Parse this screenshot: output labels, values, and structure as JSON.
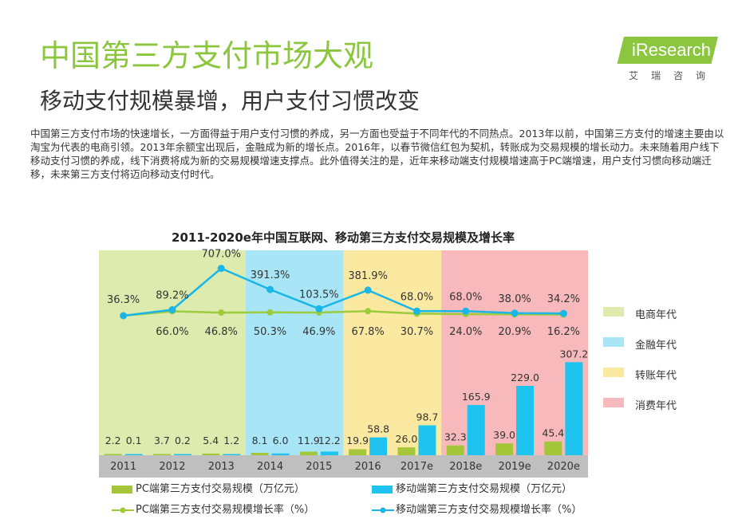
{
  "header": {
    "title": "中国第三方支付市场大观",
    "subtitle": "移动支付规模暴增，用户支付习惯改变",
    "intro": "中国第三方支付市场的快速增长，一方面得益于用户支付习惯的养成，另一方面也受益于不同年代的不同热点。2013年以前，中国第三方支付的增速主要由以淘宝为代表的电商引领。2013年余额宝出现后，金融成为新的增长点。2016年，以春节微信红包为契机，转账成为交易规模的增长动力。未来随着用户线下移动支付习惯的养成，线下消费将成为新的交易规模增速支撑点。此外值得关注的是，近年来移动端支付规模增速高于PC端增速，用户支付习惯向移动端迁移，未来第三方支付将迈向移动支付时代。"
  },
  "logo": {
    "text": "iResearch",
    "cn": "艾瑞咨询"
  },
  "colors": {
    "title": "#8CC63F",
    "logo_bg": "#8CC63F",
    "pc": "#A4C639",
    "mobile": "#1EC3EF",
    "pc_line": "#9CCB3B",
    "mobile_line": "#1BB6E8",
    "era_ecommerce": "#DDEBAE",
    "era_finance": "#A8E6F7",
    "era_transfer": "#FCE9A1",
    "era_consumption": "#F7B9BC",
    "axis_band": "#BFBFBF"
  },
  "chart_data": {
    "type": "bar",
    "title": "2011-2020e年中国互联网、移动第三方支付交易规模及增长率",
    "categories": [
      "2011",
      "2012",
      "2013",
      "2014",
      "2015",
      "2016",
      "2017e",
      "2018e",
      "2019e",
      "2020e"
    ],
    "series": [
      {
        "name": "PC端第三方支付交易规模（万亿元）",
        "type": "bar",
        "values": [
          2.2,
          3.7,
          5.4,
          8.1,
          11.9,
          19.9,
          26.0,
          32.3,
          39.0,
          45.4
        ],
        "labels": [
          "2.2",
          "3.7",
          "5.4",
          "8.1",
          "11.9",
          "19.9",
          "26.0",
          "32.3",
          "39.0",
          "45.4"
        ]
      },
      {
        "name": "移动端第三方支付交易规模（万亿元）",
        "type": "bar",
        "values": [
          0.1,
          0.2,
          1.2,
          6.0,
          12.2,
          58.8,
          98.7,
          165.9,
          229.0,
          307.2
        ],
        "labels": [
          "0.1",
          "0.2",
          "1.2",
          "6.0",
          "12.2",
          "58.8",
          "98.7",
          "165.9",
          "229.0",
          "307.2"
        ]
      },
      {
        "name": "PC端第三方支付交易规模增长率（%）",
        "type": "line",
        "values": [
          null,
          66.0,
          46.8,
          50.3,
          46.9,
          67.8,
          30.7,
          24.0,
          20.9,
          16.2
        ],
        "labels": [
          "",
          "66.0%",
          "46.8%",
          "50.3%",
          "46.9%",
          "67.8%",
          "30.7%",
          "24.0%",
          "20.9%",
          "16.2%"
        ]
      },
      {
        "name": "移动端第三方支付交易规模增长率（%）",
        "type": "line",
        "values": [
          null,
          89.2,
          707.0,
          391.3,
          103.5,
          381.9,
          68.0,
          68.0,
          38.0,
          34.2
        ],
        "labels": [
          "36.3%",
          "89.2%",
          "707.0%",
          "391.3%",
          "103.5%",
          "381.9%",
          "68.0%",
          "68.0%",
          "38.0%",
          "34.2%"
        ]
      }
    ],
    "eras": [
      {
        "name": "电商年代",
        "from": "2011",
        "to": "2013",
        "color_key": "era_ecommerce"
      },
      {
        "name": "金融年代",
        "from": "2014",
        "to": "2015",
        "color_key": "era_finance"
      },
      {
        "name": "转账年代",
        "from": "2016",
        "to": "2017e",
        "color_key": "era_transfer"
      },
      {
        "name": "消费年代",
        "from": "2018e",
        "to": "2020e",
        "color_key": "era_consumption"
      }
    ],
    "legend_position": "bottom",
    "grid": false
  }
}
